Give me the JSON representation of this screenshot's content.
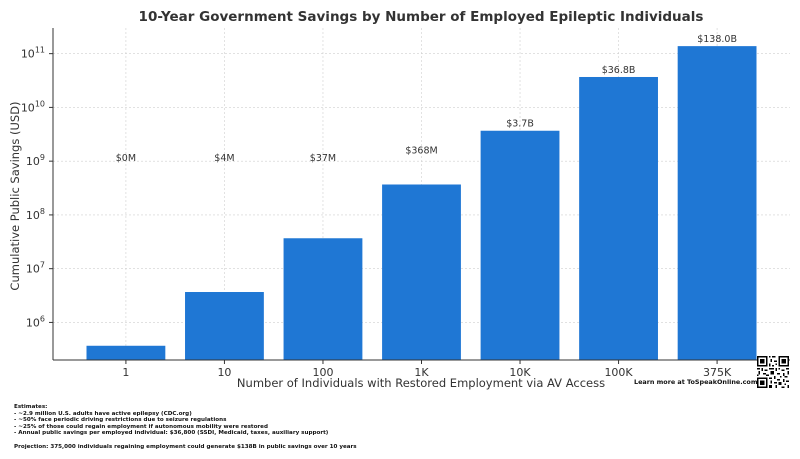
{
  "chart_data": {
    "type": "bar",
    "title": "10-Year Government Savings by Number of Employed Epileptic Individuals",
    "xlabel": "Number of Individuals with Restored Employment via AV Access",
    "ylabel": "Cumulative Public Savings (USD)",
    "yscale": "log",
    "ylim": [
      200000,
      300000000000
    ],
    "y_ticks": [
      {
        "value": 1000000,
        "base": "10",
        "exp": "6"
      },
      {
        "value": 10000000,
        "base": "10",
        "exp": "7"
      },
      {
        "value": 100000000,
        "base": "10",
        "exp": "8"
      },
      {
        "value": 1000000000,
        "base": "10",
        "exp": "9"
      },
      {
        "value": 10000000000,
        "base": "10",
        "exp": "10"
      },
      {
        "value": 100000000000,
        "base": "10",
        "exp": "11"
      }
    ],
    "categories": [
      "1",
      "10",
      "100",
      "1K",
      "10K",
      "100K",
      "375K"
    ],
    "values": [
      368000,
      3680000,
      36800000,
      368000000,
      3680000000,
      36800000000,
      138000000000
    ],
    "data_labels": [
      "$0M",
      "$4M",
      "$37M",
      "$368M",
      "$3.7B",
      "$36.8B",
      "$138.0B"
    ],
    "label_values": [
      1000000000,
      1000000000,
      1000000000,
      1400000000,
      4400000000,
      44000000000,
      165000000000
    ],
    "bar_color": "#1f77d4",
    "grid": true
  },
  "notes": {
    "heading": "Estimates:",
    "lines": [
      "- ~2.9 million U.S. adults have active epilepsy (CDC.org)",
      "- ~50% face periodic driving restrictions due to seizure regulations",
      "- ~25% of those could regain employment if autonomous mobility were restored",
      "- Annual public savings per employed individual: $36,800 (SSDI, Medicaid, taxes, auxiliary support)"
    ],
    "projection": "Projection: 375,000 individuals regaining employment could generate $138B in public savings over 10 years"
  },
  "promo": "Learn more at ToSpeakOnline.com"
}
